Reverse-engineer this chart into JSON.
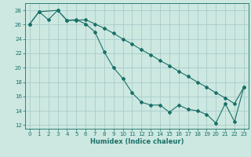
{
  "xlabel": "Humidex (Indice chaleur)",
  "background_color": "#cce8e0",
  "grid_color": "#aacccc",
  "line_color": "#1a7068",
  "xlim": [
    -0.5,
    23.5
  ],
  "ylim": [
    11.5,
    29.0
  ],
  "yticks": [
    12,
    14,
    16,
    18,
    20,
    22,
    24,
    26,
    28
  ],
  "xticks": [
    0,
    1,
    2,
    3,
    4,
    5,
    6,
    7,
    8,
    9,
    10,
    11,
    12,
    13,
    14,
    15,
    16,
    17,
    18,
    19,
    20,
    21,
    22,
    23
  ],
  "line1_x": [
    0,
    1,
    3,
    4,
    5,
    6,
    7,
    8,
    9,
    10,
    11,
    12,
    13,
    14,
    15,
    16,
    17,
    18,
    19,
    20,
    21,
    22,
    23
  ],
  "line1_y": [
    26.1,
    27.8,
    28.0,
    26.6,
    26.6,
    26.7,
    26.1,
    25.5,
    24.8,
    24.0,
    23.3,
    22.5,
    21.8,
    21.0,
    20.3,
    19.5,
    18.8,
    18.0,
    17.3,
    16.5,
    15.8,
    15.0,
    17.3
  ],
  "line2_x": [
    0,
    1,
    2,
    3,
    4,
    5,
    6,
    7,
    8,
    9,
    10,
    11,
    12,
    13,
    14,
    15,
    16,
    17,
    18,
    19,
    20,
    21,
    22,
    23
  ],
  "line2_y": [
    26.1,
    27.8,
    26.7,
    28.0,
    26.6,
    26.7,
    26.1,
    25.0,
    22.2,
    20.0,
    18.5,
    16.5,
    15.2,
    14.8,
    14.8,
    13.8,
    14.8,
    14.2,
    14.0,
    13.5,
    12.3,
    15.0,
    12.5,
    17.3
  ]
}
